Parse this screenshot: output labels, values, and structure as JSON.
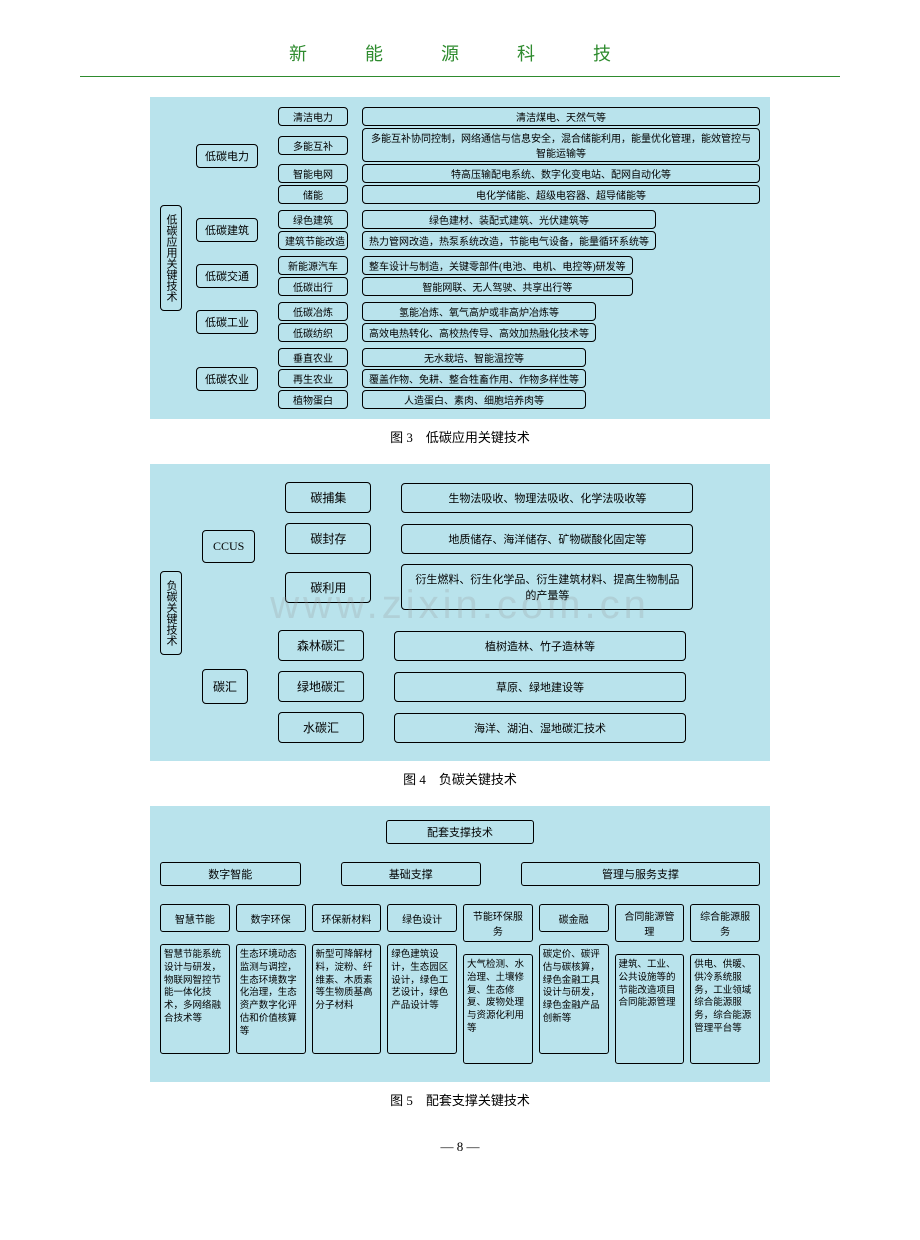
{
  "page": {
    "header": "新　能　源　科　技",
    "page_number": "— 8 —",
    "watermark": "www.zixin.com.cn"
  },
  "fig3": {
    "caption": "图 3　低碳应用关键技术",
    "root": "低碳应用关键技术",
    "bg_color": "#b9e3ec",
    "border_color": "#000000",
    "groups": [
      {
        "label": "低碳电力",
        "children": [
          {
            "leaf": "清洁电力",
            "desc": "清洁煤电、天然气等"
          },
          {
            "leaf": "多能互补",
            "desc": "多能互补协同控制，网络通信与信息安全，混合储能利用，能量优化管理，能效管控与智能运输等"
          },
          {
            "leaf": "智能电网",
            "desc": "特高压输配电系统、数字化变电站、配网自动化等"
          },
          {
            "leaf": "储能",
            "desc": "电化学储能、超级电容器、超导储能等"
          }
        ]
      },
      {
        "label": "低碳建筑",
        "children": [
          {
            "leaf": "绿色建筑",
            "desc": "绿色建材、装配式建筑、光伏建筑等"
          },
          {
            "leaf": "建筑节能改造",
            "desc": "热力管网改造，热泵系统改造，节能电气设备，能量循环系统等"
          }
        ]
      },
      {
        "label": "低碳交通",
        "children": [
          {
            "leaf": "新能源汽车",
            "desc": "整车设计与制造，关键零部件(电池、电机、电控等)研发等"
          },
          {
            "leaf": "低碳出行",
            "desc": "智能网联、无人驾驶、共享出行等"
          }
        ]
      },
      {
        "label": "低碳工业",
        "children": [
          {
            "leaf": "低碳冶炼",
            "desc": "氢能冶炼、氧气高炉或非高炉冶炼等"
          },
          {
            "leaf": "低碳纺织",
            "desc": "高效电热转化、高校热传导、高效加热融化技术等"
          }
        ]
      },
      {
        "label": "低碳农业",
        "children": [
          {
            "leaf": "垂直农业",
            "desc": "无水栽培、智能温控等"
          },
          {
            "leaf": "再生农业",
            "desc": "覆盖作物、免耕、整合牲畜作用、作物多样性等"
          },
          {
            "leaf": "植物蛋白",
            "desc": "人造蛋白、素肉、细胞培养肉等"
          }
        ]
      }
    ]
  },
  "fig4": {
    "caption": "图 4　负碳关键技术",
    "root": "负碳关键技术",
    "bg_color": "#b9e3ec",
    "groups": [
      {
        "label": "CCUS",
        "children": [
          {
            "leaf": "碳捕集",
            "desc": "生物法吸收、物理法吸收、化学法吸收等"
          },
          {
            "leaf": "碳封存",
            "desc": "地质储存、海洋储存、矿物碳酸化固定等"
          },
          {
            "leaf": "碳利用",
            "desc": "衍生燃料、衍生化学品、衍生建筑材料、提高生物制品的产量等"
          }
        ]
      },
      {
        "label": "碳汇",
        "children": [
          {
            "leaf": "森林碳汇",
            "desc": "植树造林、竹子造林等"
          },
          {
            "leaf": "绿地碳汇",
            "desc": "草原、绿地建设等"
          },
          {
            "leaf": "水碳汇",
            "desc": "海洋、湖泊、湿地碳汇技术"
          }
        ]
      }
    ]
  },
  "fig5": {
    "caption": "图 5　配套支撑关键技术",
    "root": "配套支撑技术",
    "bg_color": "#b9e3ec",
    "mids": [
      {
        "label": "数字智能",
        "span": [
          0,
          1
        ]
      },
      {
        "label": "基础支撑",
        "span": [
          2,
          3
        ]
      },
      {
        "label": "管理与服务支撑",
        "span": [
          4,
          7
        ]
      }
    ],
    "leaves": [
      {
        "head": "智慧节能",
        "body": "智慧节能系统设计与研发，物联网智控节能一体化技术，多网络融合技术等"
      },
      {
        "head": "数字环保",
        "body": "生态环境动态监测与调控，生态环境数字化治理，生态资产数字化评估和价值核算等"
      },
      {
        "head": "环保新材料",
        "body": "新型可降解材料，淀粉、纤维素、木质素等生物质基高分子材料"
      },
      {
        "head": "绿色设计",
        "body": "绿色建筑设计，生态园区设计，绿色工艺设计，绿色产品设计等"
      },
      {
        "head": "节能环保服务",
        "body": "大气检测、水治理、土壤修复、生态修复、废物处理与资源化利用等"
      },
      {
        "head": "碳金融",
        "body": "碳定价、碳评估与碳核算，绿色金融工具设计与研发，绿色金融产品创新等"
      },
      {
        "head": "合同能源管理",
        "body": "建筑、工业、公共设施等的节能改造项目合同能源管理"
      },
      {
        "head": "综合能源服务",
        "body": "供电、供暖、供冷系统服务，工业领域综合能源服务，综合能源管理平台等"
      }
    ]
  }
}
